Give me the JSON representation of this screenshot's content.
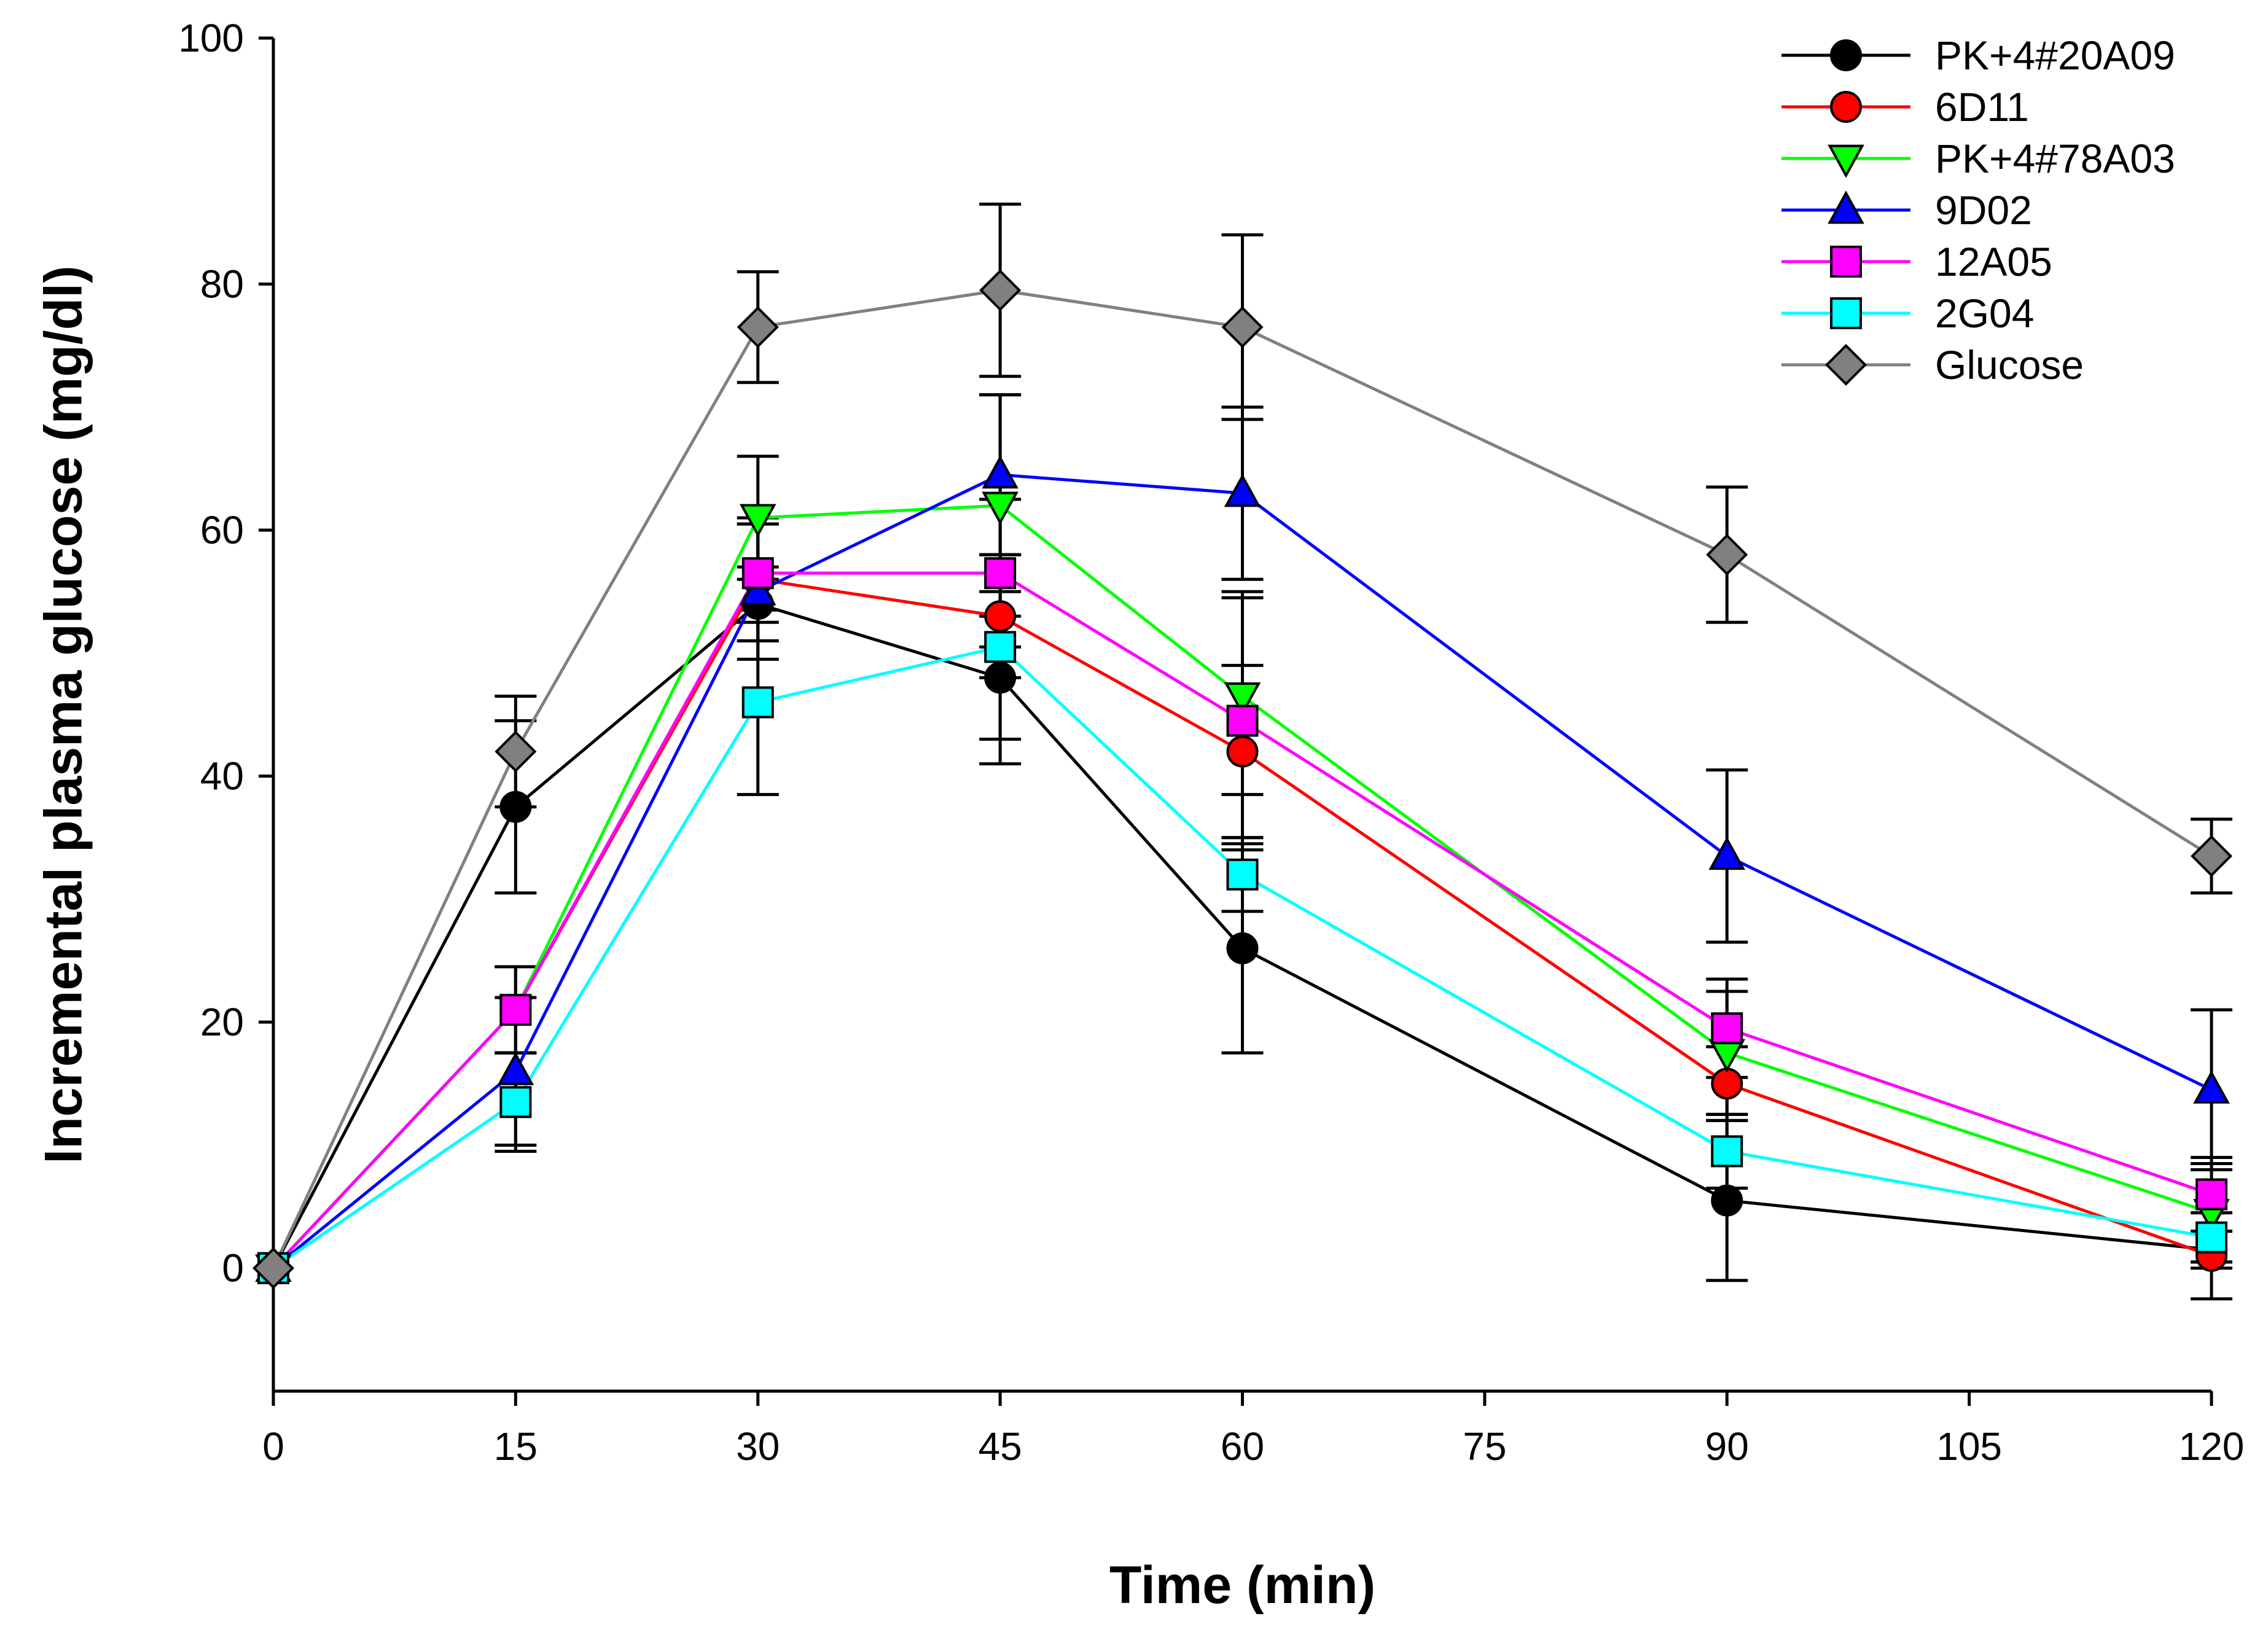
{
  "chart_data": {
    "type": "line",
    "title": "",
    "xlabel": "Time (min)",
    "ylabel": "Incremental plasma glucose (mg/dl)",
    "xlim": [
      0,
      120
    ],
    "ylim": [
      -10,
      100
    ],
    "xticks": [
      0,
      15,
      30,
      45,
      60,
      75,
      90,
      105,
      120
    ],
    "yticks": [
      0,
      20,
      40,
      60,
      80,
      100
    ],
    "grid": false,
    "legend_position": "top-right",
    "x": [
      0,
      15,
      30,
      45,
      60,
      90,
      120
    ],
    "series": [
      {
        "name": "PK+4#20A09",
        "marker": "circle",
        "color": "#000000",
        "fill": "#000000",
        "values": [
          0,
          37.5,
          54,
          48,
          26,
          5.5,
          1.5
        ],
        "errors": [
          0,
          7,
          3,
          7,
          8.5,
          6.5,
          1.5
        ]
      },
      {
        "name": "6D11",
        "marker": "circle",
        "color": "#ff0000",
        "fill": "#ff0000",
        "values": [
          0,
          21,
          56,
          53,
          42,
          15,
          1
        ],
        "errors": [
          0,
          3.5,
          5,
          5,
          7,
          3,
          3.5
        ]
      },
      {
        "name": "PK+4#78A03",
        "marker": "triangle-down",
        "color": "#00ff00",
        "fill": "#00ff00",
        "values": [
          0,
          21,
          61,
          62,
          46.5,
          17.5,
          4.5
        ],
        "errors": [
          0,
          3.5,
          5,
          9,
          8,
          5,
          4
        ]
      },
      {
        "name": "9D02",
        "marker": "triangle-up",
        "color": "#0000ff",
        "fill": "#0000ff",
        "values": [
          0,
          16,
          55,
          64.5,
          63,
          33.5,
          14.5
        ],
        "errors": [
          0,
          6,
          5.5,
          6.5,
          7,
          7,
          6.5
        ]
      },
      {
        "name": "12A05",
        "marker": "square",
        "color": "#ff00ff",
        "fill": "#ff00ff",
        "values": [
          0,
          21,
          56.5,
          56.5,
          44.5,
          19.5,
          6
        ],
        "errors": [
          0,
          3.5,
          4,
          6,
          10.5,
          4,
          3
        ]
      },
      {
        "name": "2G04",
        "marker": "square",
        "color": "#00ffff",
        "fill": "#00ffff",
        "values": [
          0,
          13.5,
          46,
          50.5,
          32,
          9.5,
          2.5
        ],
        "errors": [
          0,
          4,
          7.5,
          7.5,
          3,
          3,
          2
        ]
      },
      {
        "name": "Glucose",
        "marker": "diamond",
        "color": "#808080",
        "fill": "#808080",
        "values": [
          0,
          42,
          76.5,
          79.5,
          76.5,
          58,
          33.5
        ],
        "errors": [
          0,
          4.5,
          4.5,
          7,
          7.5,
          5.5,
          3
        ]
      }
    ]
  }
}
